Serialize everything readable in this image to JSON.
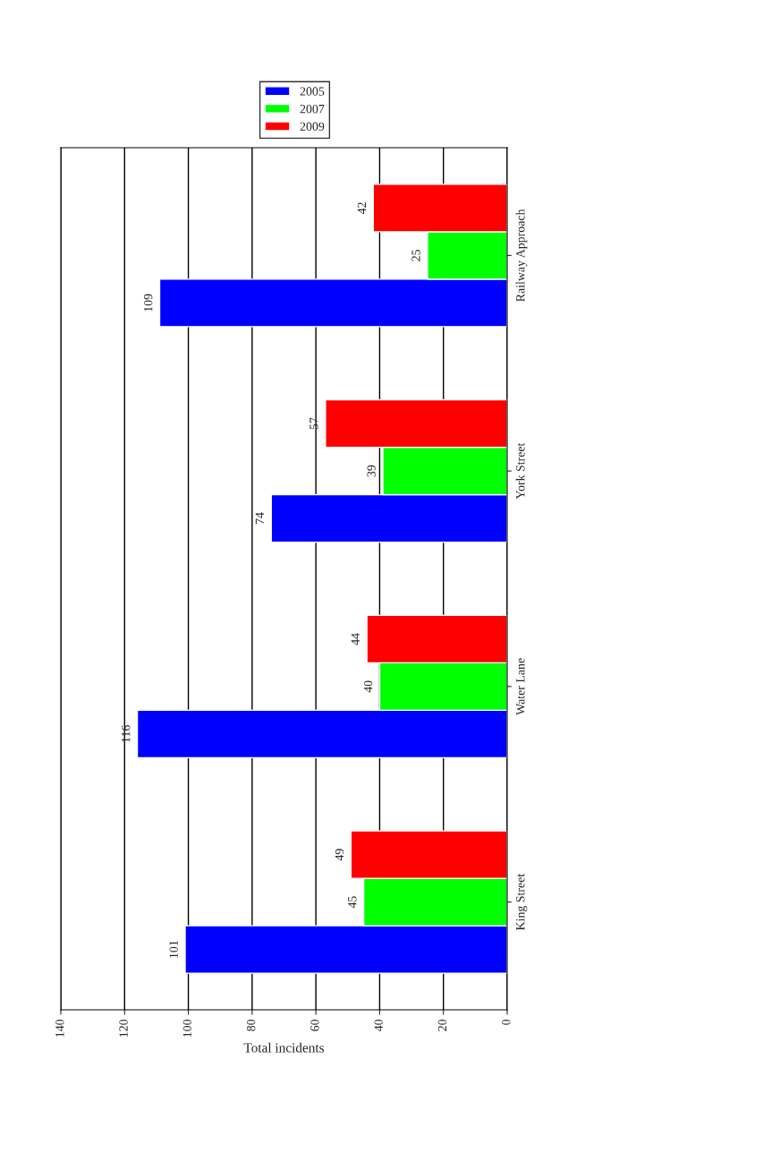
{
  "chart_data": {
    "type": "bar",
    "orientation": "horizontal",
    "xlabel": "Total incidents",
    "categories": [
      "Railway Approach",
      "York Street",
      "Water Lane",
      "King Street"
    ],
    "series": [
      {
        "name": "2005",
        "color": "#0000ff",
        "values": [
          109,
          74,
          116,
          101
        ]
      },
      {
        "name": "2007",
        "color": "#00ff00",
        "values": [
          25,
          39,
          40,
          45
        ]
      },
      {
        "name": "2009",
        "color": "#ff0000",
        "values": [
          42,
          57,
          44,
          49
        ]
      }
    ],
    "xlim": [
      140,
      0
    ],
    "xticks": [
      0,
      20,
      40,
      60,
      80,
      100,
      120,
      140
    ],
    "grid": "x",
    "legend": "top right",
    "data_labels": true
  }
}
